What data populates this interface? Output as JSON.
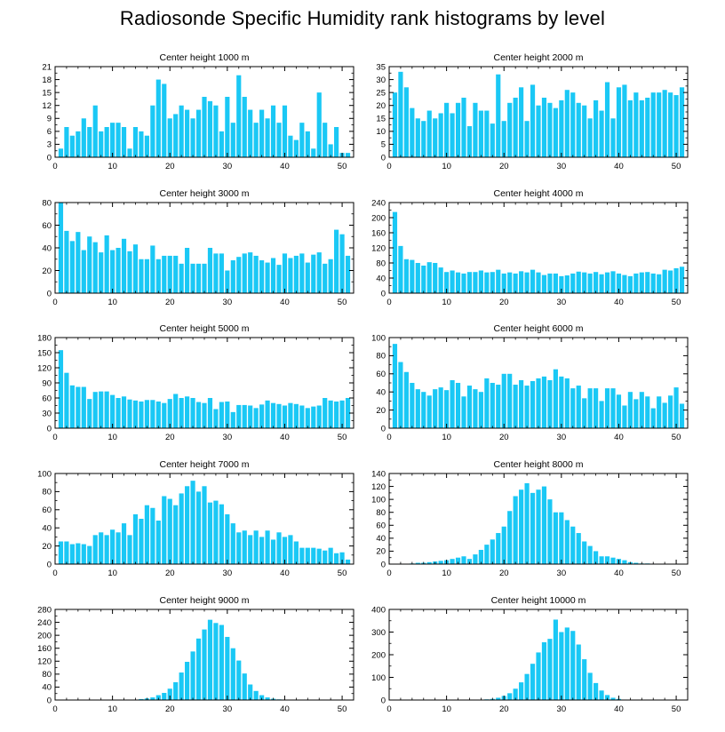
{
  "title": "Radiosonde Specific Humidity rank histograms by level",
  "colors": {
    "bar": "#1AC8F5",
    "bar_edge": "#0FA8D8",
    "axis": "#000000"
  },
  "chart_data": [
    {
      "type": "bar",
      "title": "Center height 1000 m",
      "x": [
        1,
        2,
        3,
        4,
        5,
        6,
        7,
        8,
        9,
        10,
        11,
        12,
        13,
        14,
        15,
        16,
        17,
        18,
        19,
        20,
        21,
        22,
        23,
        24,
        25,
        26,
        27,
        28,
        29,
        30,
        31,
        32,
        33,
        34,
        35,
        36,
        37,
        38,
        39,
        40,
        41,
        42,
        43,
        44,
        45,
        46,
        47,
        48,
        49,
        50,
        51
      ],
      "values": [
        2,
        7,
        5,
        6,
        9,
        7,
        12,
        6,
        7,
        8,
        8,
        7,
        2,
        7,
        6,
        5,
        12,
        18,
        17,
        9,
        10,
        12,
        11,
        9,
        11,
        14,
        13,
        12,
        6,
        14,
        8,
        19,
        14,
        11,
        8,
        11,
        9,
        12,
        8,
        12,
        5,
        4,
        8,
        6,
        2,
        15,
        8,
        3,
        7,
        1,
        1
      ],
      "xlim": [
        0,
        52
      ],
      "ylim": [
        0,
        21
      ],
      "xticks": [
        0,
        10,
        20,
        30,
        40,
        50
      ],
      "yticks": [
        0,
        3,
        6,
        9,
        12,
        15,
        18,
        21
      ]
    },
    {
      "type": "bar",
      "title": "Center height 2000 m",
      "x": [
        1,
        2,
        3,
        4,
        5,
        6,
        7,
        8,
        9,
        10,
        11,
        12,
        13,
        14,
        15,
        16,
        17,
        18,
        19,
        20,
        21,
        22,
        23,
        24,
        25,
        26,
        27,
        28,
        29,
        30,
        31,
        32,
        33,
        34,
        35,
        36,
        37,
        38,
        39,
        40,
        41,
        42,
        43,
        44,
        45,
        46,
        47,
        48,
        49,
        50,
        51
      ],
      "values": [
        25,
        33,
        27,
        19,
        15,
        14,
        18,
        15,
        17,
        21,
        17,
        21,
        23,
        12,
        21,
        18,
        18,
        13,
        32,
        14,
        21,
        23,
        27,
        14,
        28,
        20,
        23,
        21,
        19,
        22,
        26,
        25,
        21,
        20,
        15,
        22,
        18,
        29,
        15,
        27,
        28,
        22,
        25,
        22,
        23,
        25,
        25,
        26,
        25,
        24,
        27
      ],
      "xlim": [
        0,
        52
      ],
      "ylim": [
        0,
        35
      ],
      "xticks": [
        0,
        10,
        20,
        30,
        40,
        50
      ],
      "yticks": [
        0,
        5,
        10,
        15,
        20,
        25,
        30,
        35
      ]
    },
    {
      "type": "bar",
      "title": "Center height 3000 m",
      "x": [
        1,
        2,
        3,
        4,
        5,
        6,
        7,
        8,
        9,
        10,
        11,
        12,
        13,
        14,
        15,
        16,
        17,
        18,
        19,
        20,
        21,
        22,
        23,
        24,
        25,
        26,
        27,
        28,
        29,
        30,
        31,
        32,
        33,
        34,
        35,
        36,
        37,
        38,
        39,
        40,
        41,
        42,
        43,
        44,
        45,
        46,
        47,
        48,
        49,
        50,
        51
      ],
      "values": [
        80,
        55,
        46,
        54,
        38,
        50,
        45,
        36,
        51,
        38,
        40,
        48,
        37,
        43,
        30,
        30,
        42,
        30,
        33,
        33,
        33,
        26,
        40,
        26,
        26,
        26,
        40,
        35,
        35,
        20,
        29,
        32,
        35,
        36,
        33,
        29,
        27,
        31,
        25,
        35,
        31,
        33,
        35,
        27,
        34,
        36,
        26,
        30,
        56,
        52,
        33
      ],
      "xlim": [
        0,
        52
      ],
      "ylim": [
        0,
        80
      ],
      "xticks": [
        0,
        10,
        20,
        30,
        40,
        50
      ],
      "yticks": [
        0,
        20,
        40,
        60,
        80
      ]
    },
    {
      "type": "bar",
      "title": "Center height 4000 m",
      "x": [
        1,
        2,
        3,
        4,
        5,
        6,
        7,
        8,
        9,
        10,
        11,
        12,
        13,
        14,
        15,
        16,
        17,
        18,
        19,
        20,
        21,
        22,
        23,
        24,
        25,
        26,
        27,
        28,
        29,
        30,
        31,
        32,
        33,
        34,
        35,
        36,
        37,
        38,
        39,
        40,
        41,
        42,
        43,
        44,
        45,
        46,
        47,
        48,
        49,
        50,
        51
      ],
      "values": [
        215,
        125,
        90,
        88,
        80,
        73,
        82,
        80,
        68,
        56,
        60,
        55,
        52,
        56,
        56,
        60,
        55,
        56,
        62,
        52,
        55,
        52,
        58,
        55,
        62,
        55,
        48,
        52,
        52,
        45,
        47,
        52,
        57,
        55,
        52,
        56,
        50,
        55,
        58,
        52,
        48,
        45,
        52,
        55,
        56,
        52,
        50,
        62,
        60,
        66,
        70
      ],
      "xlim": [
        0,
        52
      ],
      "ylim": [
        0,
        240
      ],
      "xticks": [
        0,
        10,
        20,
        30,
        40,
        50
      ],
      "yticks": [
        0,
        40,
        80,
        120,
        160,
        200,
        240
      ]
    },
    {
      "type": "bar",
      "title": "Center height 5000 m",
      "x": [
        1,
        2,
        3,
        4,
        5,
        6,
        7,
        8,
        9,
        10,
        11,
        12,
        13,
        14,
        15,
        16,
        17,
        18,
        19,
        20,
        21,
        22,
        23,
        24,
        25,
        26,
        27,
        28,
        29,
        30,
        31,
        32,
        33,
        34,
        35,
        36,
        37,
        38,
        39,
        40,
        41,
        42,
        43,
        44,
        45,
        46,
        47,
        48,
        49,
        50,
        51
      ],
      "values": [
        155,
        110,
        85,
        82,
        82,
        58,
        72,
        73,
        73,
        66,
        60,
        63,
        57,
        55,
        53,
        56,
        56,
        53,
        50,
        58,
        68,
        60,
        63,
        60,
        52,
        50,
        60,
        38,
        52,
        53,
        32,
        46,
        46,
        45,
        40,
        47,
        55,
        50,
        48,
        45,
        50,
        48,
        45,
        40,
        43,
        45,
        60,
        55,
        53,
        55,
        60
      ],
      "xlim": [
        0,
        52
      ],
      "ylim": [
        0,
        180
      ],
      "xticks": [
        0,
        10,
        20,
        30,
        40,
        50
      ],
      "yticks": [
        0,
        30,
        60,
        90,
        120,
        150,
        180
      ]
    },
    {
      "type": "bar",
      "title": "Center height 6000 m",
      "x": [
        1,
        2,
        3,
        4,
        5,
        6,
        7,
        8,
        9,
        10,
        11,
        12,
        13,
        14,
        15,
        16,
        17,
        18,
        19,
        20,
        21,
        22,
        23,
        24,
        25,
        26,
        27,
        28,
        29,
        30,
        31,
        32,
        33,
        34,
        35,
        36,
        37,
        38,
        39,
        40,
        41,
        42,
        43,
        44,
        45,
        46,
        47,
        48,
        49,
        50,
        51
      ],
      "values": [
        93,
        73,
        62,
        50,
        43,
        40,
        36,
        43,
        45,
        42,
        53,
        50,
        35,
        47,
        43,
        40,
        55,
        50,
        48,
        60,
        60,
        48,
        53,
        47,
        52,
        55,
        57,
        53,
        65,
        57,
        55,
        44,
        47,
        33,
        44,
        44,
        30,
        44,
        44,
        37,
        25,
        40,
        32,
        40,
        35,
        22,
        35,
        28,
        36,
        45,
        27
      ],
      "xlim": [
        0,
        52
      ],
      "ylim": [
        0,
        100
      ],
      "xticks": [
        0,
        10,
        20,
        30,
        40,
        50
      ],
      "yticks": [
        0,
        20,
        40,
        60,
        80,
        100
      ]
    },
    {
      "type": "bar",
      "title": "Center height 7000 m",
      "x": [
        1,
        2,
        3,
        4,
        5,
        6,
        7,
        8,
        9,
        10,
        11,
        12,
        13,
        14,
        15,
        16,
        17,
        18,
        19,
        20,
        21,
        22,
        23,
        24,
        25,
        26,
        27,
        28,
        29,
        30,
        31,
        32,
        33,
        34,
        35,
        36,
        37,
        38,
        39,
        40,
        41,
        42,
        43,
        44,
        45,
        46,
        47,
        48,
        49,
        50,
        51
      ],
      "values": [
        25,
        25,
        22,
        23,
        22,
        20,
        32,
        35,
        32,
        38,
        35,
        45,
        32,
        55,
        50,
        65,
        62,
        48,
        75,
        72,
        65,
        78,
        86,
        92,
        80,
        86,
        68,
        70,
        66,
        55,
        45,
        35,
        37,
        32,
        37,
        30,
        37,
        27,
        35,
        30,
        32,
        25,
        18,
        18,
        18,
        17,
        15,
        18,
        12,
        13,
        5
      ],
      "xlim": [
        0,
        52
      ],
      "ylim": [
        0,
        100
      ],
      "xticks": [
        0,
        10,
        20,
        30,
        40,
        50
      ],
      "yticks": [
        0,
        20,
        40,
        60,
        80,
        100
      ]
    },
    {
      "type": "bar",
      "title": "Center height 8000 m",
      "x": [
        1,
        2,
        3,
        4,
        5,
        6,
        7,
        8,
        9,
        10,
        11,
        12,
        13,
        14,
        15,
        16,
        17,
        18,
        19,
        20,
        21,
        22,
        23,
        24,
        25,
        26,
        27,
        28,
        29,
        30,
        31,
        32,
        33,
        34,
        35,
        36,
        37,
        38,
        39,
        40,
        41,
        42,
        43,
        44,
        45,
        46,
        47,
        48,
        49,
        50,
        51
      ],
      "values": [
        0,
        0,
        0,
        1,
        2,
        2,
        3,
        4,
        5,
        6,
        8,
        10,
        12,
        8,
        15,
        22,
        30,
        38,
        48,
        58,
        82,
        105,
        115,
        125,
        110,
        115,
        120,
        100,
        80,
        80,
        68,
        58,
        48,
        35,
        28,
        20,
        12,
        12,
        10,
        8,
        6,
        3,
        2,
        1,
        1,
        0,
        0,
        0,
        0,
        0,
        0
      ],
      "xlim": [
        0,
        52
      ],
      "ylim": [
        0,
        140
      ],
      "xticks": [
        0,
        10,
        20,
        30,
        40,
        50
      ],
      "yticks": [
        0,
        20,
        40,
        60,
        80,
        100,
        120,
        140
      ]
    },
    {
      "type": "bar",
      "title": "Center height 9000 m",
      "x": [
        1,
        2,
        3,
        4,
        5,
        6,
        7,
        8,
        9,
        10,
        11,
        12,
        13,
        14,
        15,
        16,
        17,
        18,
        19,
        20,
        21,
        22,
        23,
        24,
        25,
        26,
        27,
        28,
        29,
        30,
        31,
        32,
        33,
        34,
        35,
        36,
        37,
        38,
        39,
        40,
        41,
        42,
        43,
        44,
        45,
        46,
        47,
        48,
        49,
        50,
        51
      ],
      "values": [
        0,
        0,
        0,
        0,
        0,
        0,
        0,
        0,
        0,
        0,
        0,
        0,
        0,
        1,
        3,
        5,
        8,
        15,
        22,
        35,
        55,
        85,
        118,
        150,
        190,
        218,
        248,
        238,
        232,
        195,
        160,
        122,
        82,
        48,
        28,
        15,
        8,
        4,
        2,
        1,
        0,
        0,
        0,
        0,
        0,
        0,
        0,
        0,
        0,
        0,
        0
      ],
      "xlim": [
        0,
        52
      ],
      "ylim": [
        0,
        280
      ],
      "xticks": [
        0,
        10,
        20,
        30,
        40,
        50
      ],
      "yticks": [
        0,
        40,
        80,
        120,
        160,
        200,
        240,
        280
      ]
    },
    {
      "type": "bar",
      "title": "Center height 10000 m",
      "x": [
        1,
        2,
        3,
        4,
        5,
        6,
        7,
        8,
        9,
        10,
        11,
        12,
        13,
        14,
        15,
        16,
        17,
        18,
        19,
        20,
        21,
        22,
        23,
        24,
        25,
        26,
        27,
        28,
        29,
        30,
        31,
        32,
        33,
        34,
        35,
        36,
        37,
        38,
        39,
        40,
        41,
        42,
        43,
        44,
        45,
        46,
        47,
        48,
        49,
        50,
        51
      ],
      "values": [
        0,
        0,
        0,
        0,
        0,
        0,
        0,
        0,
        0,
        0,
        0,
        0,
        0,
        0,
        0,
        1,
        3,
        5,
        10,
        18,
        30,
        50,
        78,
        115,
        160,
        210,
        255,
        270,
        355,
        300,
        320,
        305,
        245,
        180,
        120,
        75,
        42,
        22,
        10,
        5,
        2,
        1,
        0,
        0,
        0,
        0,
        0,
        0,
        0,
        0,
        0
      ],
      "xlim": [
        0,
        52
      ],
      "ylim": [
        0,
        400
      ],
      "xticks": [
        0,
        10,
        20,
        30,
        40,
        50
      ],
      "yticks": [
        0,
        100,
        200,
        300,
        400
      ]
    }
  ]
}
